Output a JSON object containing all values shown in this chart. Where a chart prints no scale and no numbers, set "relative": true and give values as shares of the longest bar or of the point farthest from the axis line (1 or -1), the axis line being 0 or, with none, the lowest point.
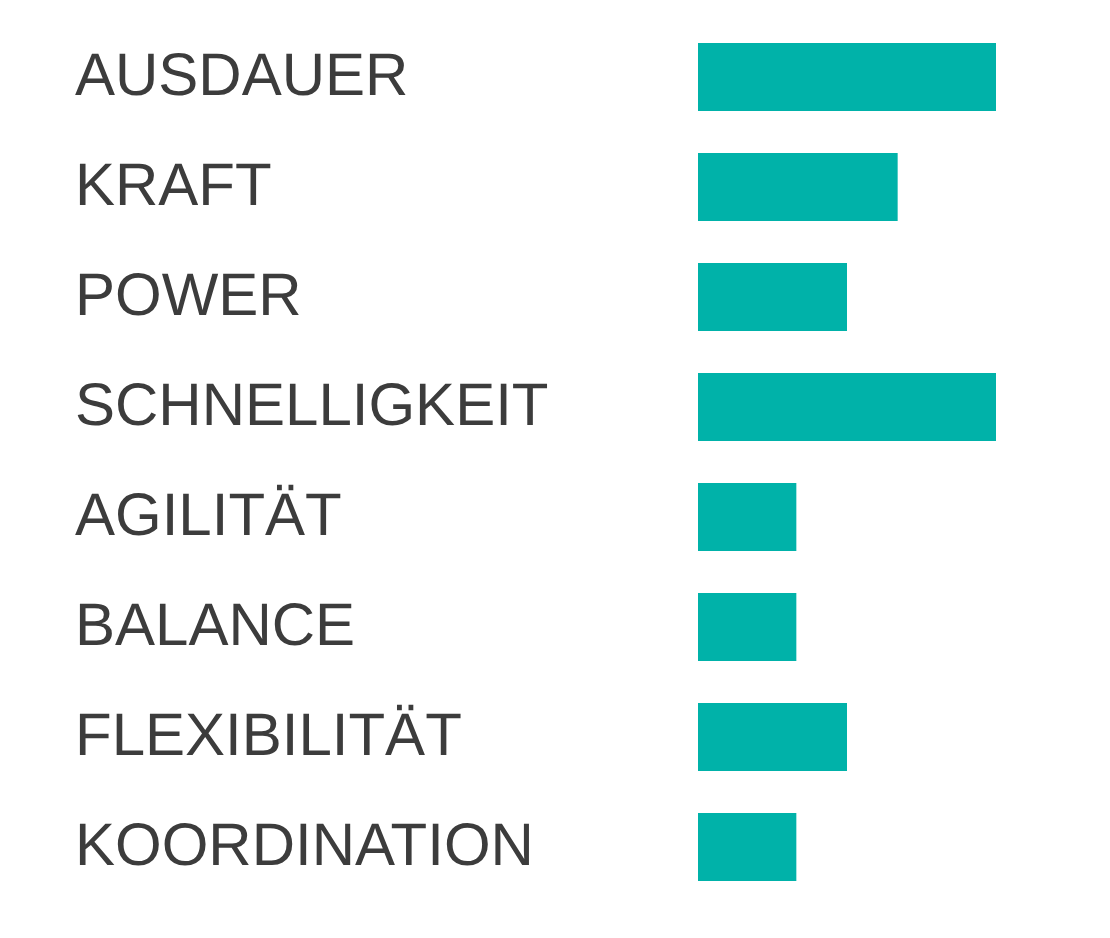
{
  "chart_data": {
    "type": "bar",
    "orientation": "horizontal",
    "relative": true,
    "categories": [
      "AUSDAUER",
      "KRAFT",
      "POWER",
      "SCHNELLIGKEIT",
      "AGILITÄT",
      "BALANCE",
      "FLEXIBILITÄT",
      "KOORDINATION"
    ],
    "values": [
      1,
      0.67,
      0.5,
      1,
      0.33,
      0.33,
      0.5,
      0.33
    ],
    "color": "#00b2a9"
  }
}
